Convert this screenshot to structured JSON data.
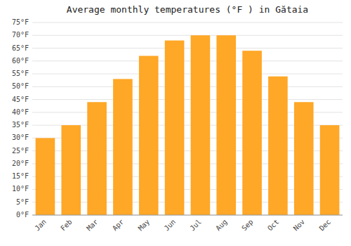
{
  "chart_data": {
    "type": "bar",
    "title": "Average monthly temperatures (°F ) in Gătaia",
    "categories": [
      "Jan",
      "Feb",
      "Mar",
      "Apr",
      "May",
      "Jun",
      "Jul",
      "Aug",
      "Sep",
      "Oct",
      "Nov",
      "Dec"
    ],
    "values": [
      30,
      35,
      44,
      53,
      62,
      68,
      70,
      70,
      64,
      54,
      44,
      35
    ],
    "color": "#FFA726",
    "ylim": [
      0,
      75
    ],
    "yticks": [
      {
        "value": 0,
        "label": "0°F"
      },
      {
        "value": 5,
        "label": "5°F"
      },
      {
        "value": 10,
        "label": "10°F"
      },
      {
        "value": 15,
        "label": "15°F"
      },
      {
        "value": 20,
        "label": "20°F"
      },
      {
        "value": 25,
        "label": "25°F"
      },
      {
        "value": 30,
        "label": "30°F"
      },
      {
        "value": 35,
        "label": "35°F"
      },
      {
        "value": 40,
        "label": "40°F"
      },
      {
        "value": 45,
        "label": "45°F"
      },
      {
        "value": 50,
        "label": "50°F"
      },
      {
        "value": 55,
        "label": "55°F"
      },
      {
        "value": 60,
        "label": "60°F"
      },
      {
        "value": 65,
        "label": "65°F"
      },
      {
        "value": 70,
        "label": "70°F"
      },
      {
        "value": 75,
        "label": "75°F"
      }
    ],
    "grid": true
  }
}
